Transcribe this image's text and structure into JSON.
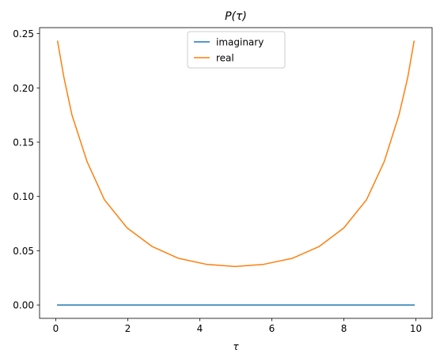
{
  "chart_data": {
    "type": "line",
    "title": "P(τ)",
    "xlabel": "τ",
    "ylabel": "",
    "xlim": [
      -0.45,
      10.45
    ],
    "ylim": [
      -0.0123,
      0.2555
    ],
    "xticks": [
      0,
      2,
      4,
      6,
      8,
      10
    ],
    "xtick_labels": [
      "0",
      "2",
      "4",
      "6",
      "8",
      "10"
    ],
    "yticks": [
      0.0,
      0.05,
      0.1,
      0.15,
      0.2,
      0.25
    ],
    "ytick_labels": [
      "0.00",
      "0.05",
      "0.10",
      "0.15",
      "0.20",
      "0.25"
    ],
    "grid": false,
    "legend_position": "upper center",
    "series": [
      {
        "name": "imaginary",
        "color": "#1f77b4",
        "x": [
          0.05,
          0.23,
          0.45,
          0.87,
          1.35,
          1.98,
          2.67,
          3.41,
          4.18,
          4.98,
          5.78,
          6.57,
          7.32,
          8.0,
          8.63,
          9.12,
          9.53,
          9.77,
          9.95
        ],
        "y": [
          0.0,
          0.0,
          0.0,
          0.0,
          0.0,
          0.0,
          0.0,
          0.0,
          0.0,
          0.0,
          0.0,
          0.0,
          0.0,
          0.0,
          0.0,
          0.0,
          0.0,
          0.0,
          0.0
        ]
      },
      {
        "name": "real",
        "color": "#ff7f0e",
        "x": [
          0.05,
          0.23,
          0.45,
          0.87,
          1.35,
          1.98,
          2.67,
          3.41,
          4.18,
          4.98,
          5.78,
          6.57,
          7.32,
          8.0,
          8.63,
          9.12,
          9.53,
          9.77,
          9.95
        ],
        "y": [
          0.243,
          0.209,
          0.175,
          0.132,
          0.097,
          0.071,
          0.054,
          0.043,
          0.0375,
          0.0355,
          0.0375,
          0.043,
          0.054,
          0.071,
          0.097,
          0.132,
          0.175,
          0.209,
          0.243
        ]
      }
    ]
  }
}
